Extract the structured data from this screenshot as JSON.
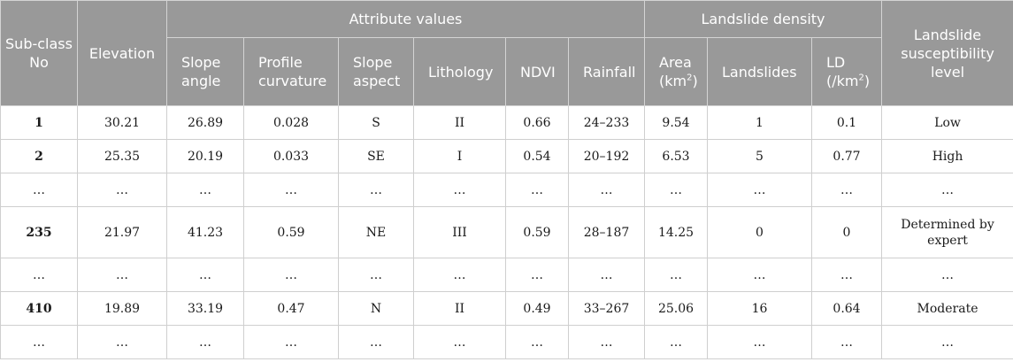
{
  "headers": {
    "subclass": "Sub-class No",
    "elevation": "Elevation",
    "attribute_values": "Attribute values",
    "slope_angle": "Slope angle",
    "profile_curvature": "Profile curvature",
    "slope_aspect": "Slope aspect",
    "lithology": "Lithology",
    "ndvi": "NDVI",
    "rainfall": "Rainfall",
    "landslide_density": "Landslide density",
    "area_label": "Area (km",
    "area_sup": "2",
    "area_close": ")",
    "landslides": "Landslides",
    "ld_label": "LD (/km",
    "ld_sup": "2",
    "ld_close": ")",
    "susceptibility": "Landslide susceptibility level"
  },
  "rows": [
    [
      "1",
      "30.21",
      "26.89",
      "0.028",
      "S",
      "II",
      "0.66",
      "24–233",
      "9.54",
      "1",
      "0.1",
      "Low"
    ],
    [
      "2",
      "25.35",
      "20.19",
      "0.033",
      "SE",
      "I",
      "0.54",
      "20–192",
      "6.53",
      "5",
      "0.77",
      "High"
    ],
    [
      "…",
      "…",
      "…",
      "…",
      "…",
      "…",
      "…",
      "…",
      "…",
      "…",
      "…",
      "…"
    ],
    [
      "235",
      "21.97",
      "41.23",
      "0.59",
      "NE",
      "III",
      "0.59",
      "28–187",
      "14.25",
      "0",
      "0",
      "Determined by expert"
    ],
    [
      "…",
      "…",
      "…",
      "…",
      "…",
      "…",
      "…",
      "…",
      "…",
      "…",
      "…",
      "…"
    ],
    [
      "410",
      "19.89",
      "33.19",
      "0.47",
      "N",
      "II",
      "0.49",
      "33–267",
      "25.06",
      "16",
      "0.64",
      "Moderate"
    ],
    [
      "…",
      "…",
      "…",
      "…",
      "…",
      "…",
      "…",
      "…",
      "…",
      "…",
      "…",
      "…"
    ]
  ]
}
